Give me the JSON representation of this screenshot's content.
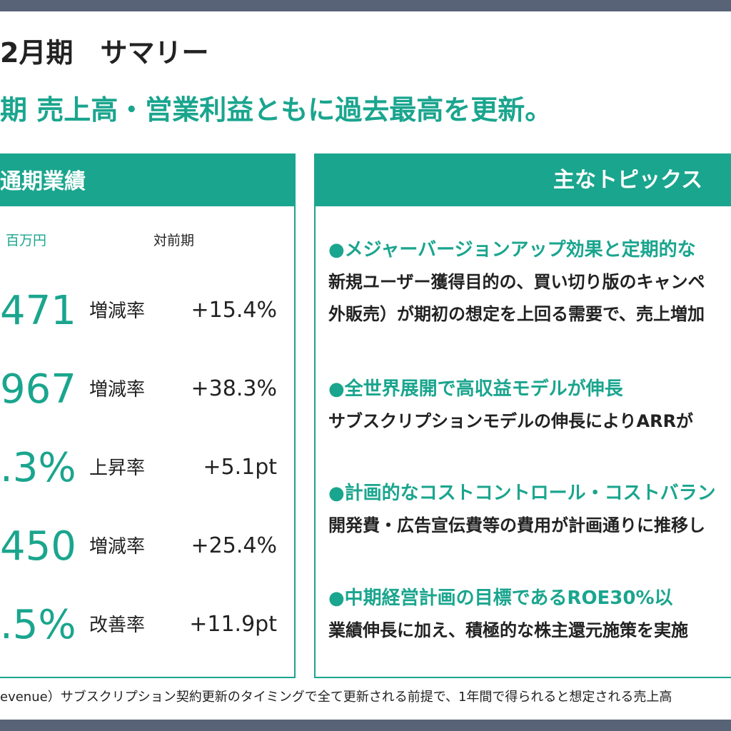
{
  "header": {
    "title": "2月期　サマリー",
    "subtitle": "期 売上高・営業利益ともに過去最高を更新。"
  },
  "results": {
    "title": "通期業績",
    "unit": "百万円",
    "compare_header": "対前期",
    "rows": [
      {
        "value": "471",
        "label": "増減率",
        "change": "+15.4%"
      },
      {
        "value": "967",
        "label": "増減率",
        "change": "+38.3%"
      },
      {
        "value": ".3%",
        "label": "上昇率",
        "change": "+5.1pt"
      },
      {
        "value": "450",
        "label": "増減率",
        "change": "+25.4%"
      },
      {
        "value": ".5%",
        "label": "改善率",
        "change": "+11.9pt"
      }
    ]
  },
  "topics": {
    "title": "主なトピックス",
    "items": [
      {
        "heading": "●メジャーバージョンアップ効果と定期的な",
        "body": [
          "新規ユーザー獲得目的の、買い切り版のキャンペ",
          "外販売）が期初の想定を上回る需要で、売上増加"
        ]
      },
      {
        "heading": "●全世界展開で高収益モデルが伸長",
        "body": [
          "サブスクリプションモデルの伸長によりARRが"
        ]
      },
      {
        "heading": "●計画的なコストコントロール・コストバラン",
        "body": [
          "開発費・広告宣伝費等の費用が計画通りに推移し"
        ]
      },
      {
        "heading": "●中期経営計画の目標であるROE30%以",
        "body": [
          "業績伸長に加え、積極的な株主還元施策を実施"
        ]
      }
    ]
  },
  "footnote": "evenue）サブスクリプション契約更新のタイミングで全て更新される前提で、1年間で得られると想定される売上高"
}
